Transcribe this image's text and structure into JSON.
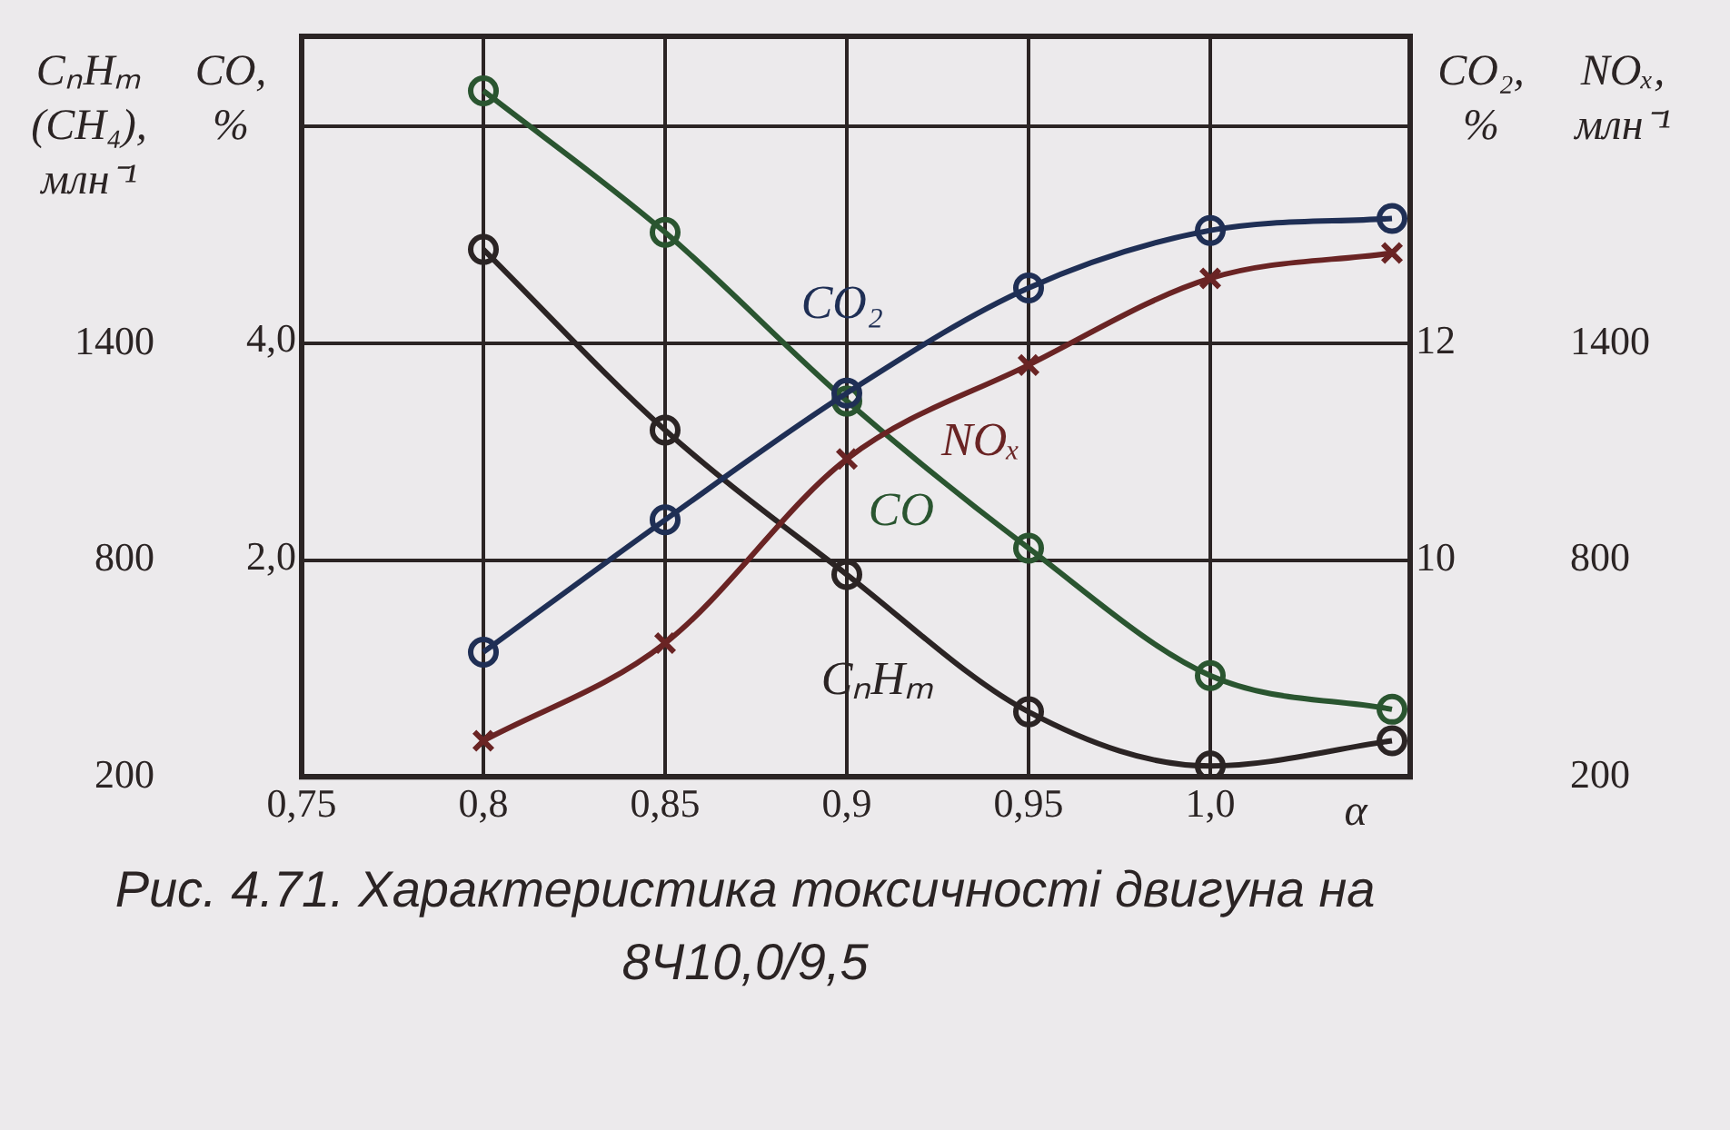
{
  "chart_data": {
    "type": "line",
    "annotations": [
      "Рис. 4.71. Характеристика токсичності двигуна на 8Ч10,0/9,5",
      "NOₓ, млн⁻¹",
      "1400",
      "800",
      "200"
    ],
    "xlabel": "α",
    "ylabel": "CₙHₘ (CH₄), млн⁻¹",
    "y2label": "CO, %",
    "y3label": "CO₂, %",
    "x": [
      0.8,
      0.85,
      0.9,
      0.95,
      1.0,
      1.05
    ],
    "xlim": [
      0.75,
      1.055
    ],
    "xticks": [
      {
        "value": 0.75,
        "label": "0,75"
      },
      {
        "value": 0.8,
        "label": "0,8"
      },
      {
        "value": 0.85,
        "label": "0,85"
      },
      {
        "value": 0.9,
        "label": "0,9"
      },
      {
        "value": 0.95,
        "label": "0,95"
      },
      {
        "value": 1.0,
        "label": "1,0"
      }
    ],
    "ylim": [
      200,
      2250
    ],
    "yticks": [
      200,
      800,
      1400,
      {
        "value": 2000,
        "label": null
      }
    ],
    "y2lim": [
      0,
      6.8
    ],
    "y2ticks": [
      {
        "value": 2,
        "label": "2,0"
      },
      {
        "value": 4,
        "label": "4,0"
      }
    ],
    "y3lim": [
      8.0,
      14.83
    ],
    "y3ticks": [
      10,
      12
    ],
    "grid": true,
    "legend": false,
    "series": [
      {
        "name": "CO₂",
        "color": "#1f2f55",
        "axis": "y3",
        "marker": "circle",
        "values": [
          9.15,
          10.37,
          11.54,
          12.51,
          13.04,
          13.15
        ]
      },
      {
        "name": "NOₓ",
        "color": "#6a2424",
        "marker": "cross",
        "values": [
          300,
          570,
          1080,
          1340,
          1580,
          1650
        ]
      },
      {
        "name": "CₙHₘ",
        "color": "#2b2424",
        "axis": "y",
        "marker": "circle",
        "values": [
          1660,
          1160,
          760,
          380,
          230,
          300
        ]
      },
      {
        "name": "CO",
        "color": "#2a5530",
        "axis": "y2",
        "marker": "circle",
        "values": [
          6.3,
          5.0,
          3.45,
          2.1,
          0.93,
          0.62
        ]
      }
    ]
  }
}
